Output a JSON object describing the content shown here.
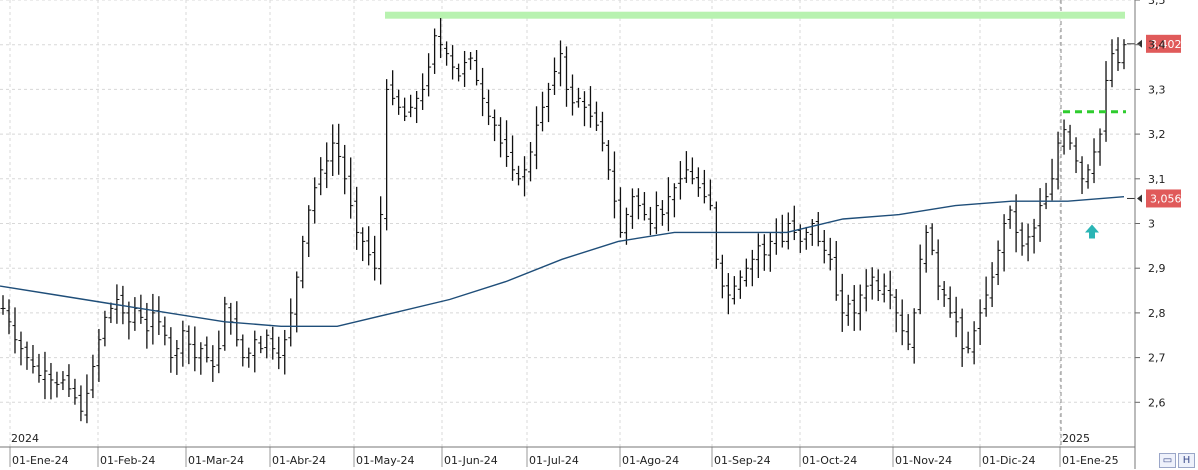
{
  "chart_data": {
    "type": "ohlc-bars",
    "y_axis": {
      "side": "right",
      "range": [
        2.5,
        3.5
      ],
      "tick_labels": [
        "2,6",
        "2,7",
        "2,8",
        "2,9",
        "3",
        "3,1",
        "3,2",
        "3,3",
        "3,4",
        "3,5"
      ],
      "tick_values": [
        2.6,
        2.7,
        2.8,
        2.9,
        3.0,
        3.1,
        3.2,
        3.3,
        3.4,
        3.5
      ]
    },
    "x_axis": {
      "month_labels": [
        "01-Ene-24",
        "01-Feb-24",
        "01-Mar-24",
        "01-Abr-24",
        "01-May-24",
        "01-Jun-24",
        "01-Jul-24",
        "01-Ago-24",
        "01-Sep-24",
        "01-Oct-24",
        "01-Nov-24",
        "01-Dic-24",
        "01-Ene-25"
      ],
      "year_labels": [
        "2024",
        "2025"
      ]
    },
    "price_tags": [
      {
        "label": "3,402",
        "value": 3.402,
        "color": "#e05a5a"
      },
      {
        "label": "3,056",
        "value": 3.056,
        "color": "#e05a5a"
      }
    ],
    "resistance_band": {
      "value": 3.466,
      "color": "#b8f2b0"
    },
    "breakout_level": {
      "value": 3.25,
      "color": "#2ecc2e",
      "style": "dashed"
    },
    "moving_average_color": "#1f4e79",
    "bar_color": "#111111",
    "signal_arrow": {
      "direction": "up",
      "color": "#2ab5b5",
      "value": 2.98
    },
    "closes": [
      2.81,
      2.78,
      2.74,
      2.72,
      2.7,
      2.68,
      2.66,
      2.67,
      2.65,
      2.64,
      2.65,
      2.63,
      2.61,
      2.58,
      2.62,
      2.68,
      2.74,
      2.79,
      2.81,
      2.83,
      2.8,
      2.78,
      2.81,
      2.79,
      2.76,
      2.8,
      2.78,
      2.75,
      2.7,
      2.72,
      2.76,
      2.73,
      2.7,
      2.72,
      2.7,
      2.68,
      2.72,
      2.82,
      2.78,
      2.74,
      2.7,
      2.71,
      2.74,
      2.72,
      2.75,
      2.72,
      2.7,
      2.74,
      2.8,
      2.88,
      2.96,
      3.03,
      3.08,
      3.12,
      3.14,
      3.18,
      3.15,
      3.1,
      3.04,
      2.98,
      2.96,
      2.93,
      2.9,
      3.02,
      3.3,
      3.28,
      3.26,
      3.24,
      3.26,
      3.28,
      3.3,
      3.35,
      3.42,
      3.4,
      3.38,
      3.35,
      3.33,
      3.36,
      3.37,
      3.32,
      3.28,
      3.24,
      3.22,
      3.18,
      3.15,
      3.12,
      3.1,
      3.12,
      3.16,
      3.22,
      3.26,
      3.3,
      3.34,
      3.38,
      3.3,
      3.27,
      3.28,
      3.26,
      3.24,
      3.22,
      3.18,
      3.12,
      3.05,
      2.98,
      3.02,
      3.06,
      3.04,
      3.02,
      3.0,
      3.04,
      3.02,
      3.06,
      3.08,
      3.1,
      3.12,
      3.1,
      3.08,
      3.06,
      3.04,
      2.92,
      2.86,
      2.84,
      2.86,
      2.88,
      2.9,
      2.92,
      2.95,
      2.93,
      2.96,
      2.98,
      2.96,
      3.0,
      2.98,
      2.96,
      2.98,
      3.0,
      2.96,
      2.94,
      2.92,
      2.84,
      2.8,
      2.82,
      2.8,
      2.84,
      2.86,
      2.88,
      2.85,
      2.86,
      2.84,
      2.8,
      2.76,
      2.73,
      2.8,
      2.92,
      2.98,
      2.94,
      2.86,
      2.84,
      2.8,
      2.78,
      2.72,
      2.72,
      2.76,
      2.8,
      2.84,
      2.88,
      2.94,
      3.0,
      3.03,
      2.98,
      2.95,
      2.97,
      2.99,
      3.04,
      3.06,
      3.1,
      3.18,
      3.21,
      3.18,
      3.14,
      3.1,
      3.12,
      3.16,
      3.2,
      3.32,
      3.38,
      3.36,
      3.4
    ],
    "moving_average": [
      2.86,
      2.84,
      2.82,
      2.8,
      2.78,
      2.77,
      2.77,
      2.8,
      2.83,
      2.87,
      2.92,
      2.96,
      2.98,
      2.98,
      2.98,
      3.01,
      3.02,
      3.04,
      3.05,
      3.05,
      3.06
    ]
  }
}
